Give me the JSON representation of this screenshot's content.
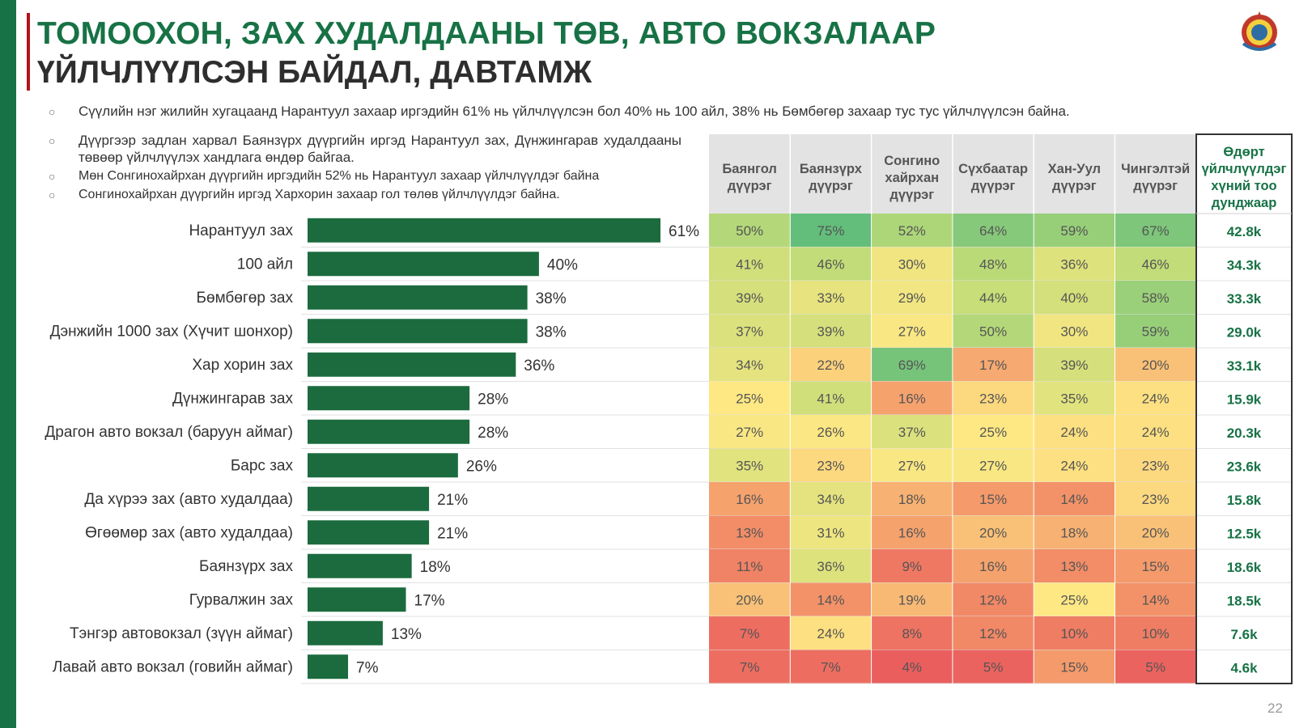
{
  "title_line1": "ТОМООХОН, ЗАХ ХУДАЛДААНЫ ТӨВ, АВТО ВОКЗАЛААР",
  "title_line2": "ҮЙЛЧЛҮҮЛСЭН БАЙДАЛ, ДАВТАМЖ",
  "bullets": [
    "Сүүлийн нэг жилийн хугацаанд Нарантуул захаар иргэдийн 61% нь үйлчлүүлсэн бол 40% нь 100 айл, 38% нь Бөмбөгөр захаар тус тус үйлчлүүлсэн байна.",
    "Дүүргээр задлан харвал Баянзүрх дүүргийн иргэд Нарантуул зах, Дүнжингарав худалдааны төвөөр үйлчлүүлэх хандлага өндөр байгаа.",
    "Мөн Сонгинохайрхан дүүргийн иргэдийн 52% нь Нарантуул захаар үйлчлүүлдэг байна",
    "Сонгинохайрхан дүүргийн иргэд Хархорин захаар гол төлөв үйлчлүүлдэг байна."
  ],
  "page_number": "22",
  "colors": {
    "bar": "#1b6b3e",
    "accent_green": "#177245",
    "accent_red": "#b5121b"
  },
  "emblem_icon": "state-emblem-icon",
  "chart_data": {
    "type": "bar",
    "orientation": "horizontal",
    "categories": [
      "Нарантуул зах",
      "100 айл",
      "Бөмбөгөр зах",
      "Дэнжийн 1000 зах (Хүчит шонхор)",
      "Хар хорин зах",
      "Дүнжингарав зах",
      "Драгон авто вокзал (баруун аймаг)",
      "Барс зах",
      "Да хүрээ зах (авто худалдаа)",
      "Өгөөмөр зах (авто худалдаа)",
      "Баянзүрх зах",
      "Гурвалжин зах",
      "Тэнгэр автовокзал (зүүн аймаг)",
      "Лавай авто вокзал (говийн аймаг)"
    ],
    "values": [
      61,
      40,
      38,
      38,
      36,
      28,
      28,
      26,
      21,
      21,
      18,
      17,
      13,
      7
    ],
    "value_labels": [
      "61%",
      "40%",
      "38%",
      "38%",
      "36%",
      "28%",
      "28%",
      "26%",
      "21%",
      "21%",
      "18%",
      "17%",
      "13%",
      "7%"
    ],
    "xlim": [
      0,
      61
    ],
    "table": {
      "type": "heatmap",
      "columns": [
        "Баянгол дүүрэг",
        "Баянзүрх дүүрэг",
        "Сонгино хайрхан дүүрэг",
        "Сүхбаатар дүүрэг",
        "Хан-Уул дүүрэг",
        "Чингэлтэй дүүрэг"
      ],
      "rows": [
        [
          50,
          75,
          52,
          64,
          59,
          67
        ],
        [
          41,
          46,
          30,
          48,
          36,
          46
        ],
        [
          39,
          33,
          29,
          44,
          40,
          58
        ],
        [
          37,
          39,
          27,
          50,
          30,
          59
        ],
        [
          34,
          22,
          69,
          17,
          39,
          20
        ],
        [
          25,
          41,
          16,
          23,
          35,
          24
        ],
        [
          27,
          26,
          37,
          25,
          24,
          24
        ],
        [
          35,
          23,
          27,
          27,
          24,
          23
        ],
        [
          16,
          34,
          18,
          15,
          14,
          23
        ],
        [
          13,
          31,
          16,
          20,
          18,
          20
        ],
        [
          11,
          36,
          9,
          16,
          13,
          15
        ],
        [
          20,
          14,
          19,
          12,
          25,
          14
        ],
        [
          7,
          24,
          8,
          12,
          10,
          10
        ],
        [
          7,
          7,
          4,
          5,
          15,
          5
        ]
      ],
      "daily_header": "Өдөрт үйлчлүүлдэг хүний тоо дунджаар",
      "daily": [
        "42.8k",
        "34.3k",
        "33.3k",
        "29.0k",
        "33.1k",
        "15.9k",
        "20.3k",
        "23.6k",
        "15.8k",
        "12.5k",
        "18.6k",
        "18.5k",
        "7.6k",
        "4.6k"
      ]
    }
  }
}
